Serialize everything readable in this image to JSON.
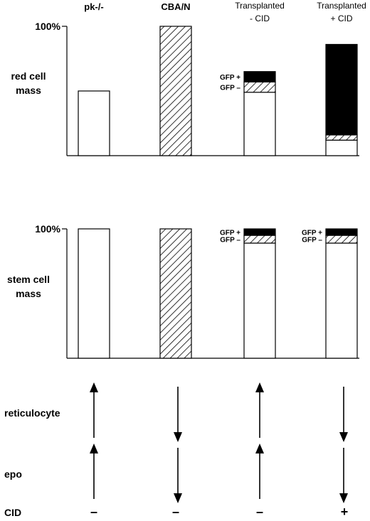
{
  "chart_data": [
    {
      "type": "bar",
      "stacked": true,
      "ylabel_lines": [
        "red cell",
        "mass"
      ],
      "y_tick_label": "100%",
      "ylim": [
        0,
        100
      ],
      "categories": [
        {
          "lines": [
            "pk-/-"
          ]
        },
        {
          "lines": [
            "CBA/N"
          ]
        },
        {
          "lines": [
            "Transplanted",
            "- CID"
          ]
        },
        {
          "lines": [
            "Transplanted",
            "+ CID"
          ]
        }
      ],
      "series": [
        {
          "key": "host",
          "fill": "white",
          "values": [
            50,
            0,
            49,
            12
          ]
        },
        {
          "key": "gfp_neg",
          "fill": "hatch",
          "values": [
            0,
            100,
            8,
            4
          ]
        },
        {
          "key": "gfp_pos",
          "fill": "black",
          "values": [
            0,
            0,
            8,
            70
          ]
        }
      ],
      "segment_labels": [
        {
          "bar": 2,
          "text": "GFP +",
          "series": "gfp_pos"
        },
        {
          "bar": 2,
          "text": "GFP –",
          "series": "gfp_neg"
        }
      ]
    },
    {
      "type": "bar",
      "stacked": true,
      "ylabel_lines": [
        "stem cell",
        "mass"
      ],
      "y_tick_label": "100%",
      "ylim": [
        0,
        100
      ],
      "categories": [
        {
          "lines": [
            "pk-/-"
          ]
        },
        {
          "lines": [
            "CBA/N"
          ]
        },
        {
          "lines": [
            "Transplanted",
            "- CID"
          ]
        },
        {
          "lines": [
            "Transplanted",
            "+ CID"
          ]
        }
      ],
      "series": [
        {
          "key": "host",
          "fill": "white",
          "values": [
            100,
            0,
            89,
            89
          ]
        },
        {
          "key": "gfp_neg",
          "fill": "hatch",
          "values": [
            0,
            100,
            6,
            6
          ]
        },
        {
          "key": "gfp_pos",
          "fill": "black",
          "values": [
            0,
            0,
            5,
            5
          ]
        }
      ],
      "segment_labels": [
        {
          "bar": 2,
          "text": "GFP +",
          "series": "gfp_pos"
        },
        {
          "bar": 2,
          "text": "GFP –",
          "series": "gfp_neg"
        },
        {
          "bar": 3,
          "text": "GFP +",
          "series": "gfp_pos"
        },
        {
          "bar": 3,
          "text": "GFP –",
          "series": "gfp_neg"
        }
      ]
    }
  ],
  "indicators": [
    {
      "label": "reticulocyte",
      "directions": [
        "up",
        "down",
        "up",
        "down"
      ]
    },
    {
      "label": "epo",
      "directions": [
        "up",
        "down",
        "up",
        "down"
      ]
    }
  ],
  "cid_row": {
    "label": "CID",
    "symbols": [
      "–",
      "–",
      "–",
      "+"
    ]
  }
}
